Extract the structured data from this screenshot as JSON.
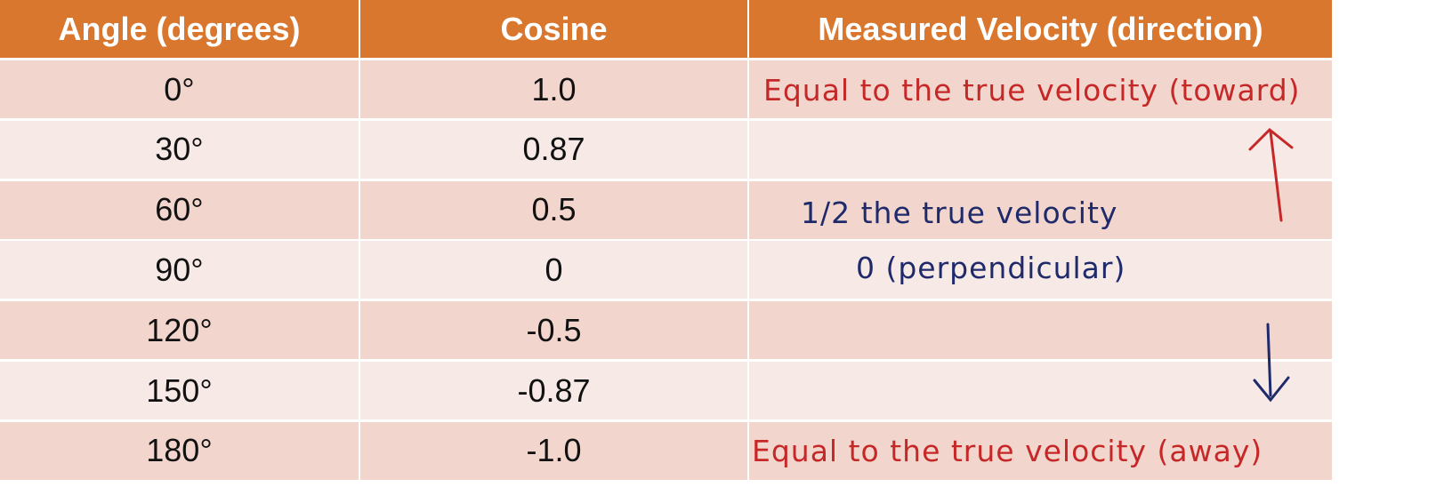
{
  "table": {
    "headers": [
      "Angle (degrees)",
      "Cosine",
      "Measured Velocity (direction)"
    ],
    "rows": [
      [
        "0°",
        "1.0"
      ],
      [
        "30°",
        "0.87"
      ],
      [
        "60°",
        "0.5"
      ],
      [
        "90°",
        "0"
      ],
      [
        "120°",
        "-0.5"
      ],
      [
        "150°",
        "-0.87"
      ],
      [
        "180°",
        "-1.0"
      ]
    ]
  },
  "annotations": [
    "Equal to the true velocity (toward)",
    "1/2 the true velocity",
    "0 (perpendicular)",
    "Equal to the true velocity (away)"
  ]
}
